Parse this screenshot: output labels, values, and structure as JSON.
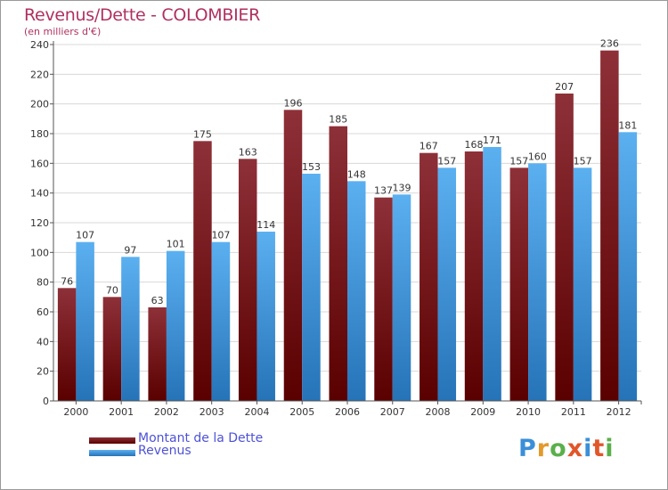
{
  "chart_data": {
    "type": "bar",
    "title": "Revenus/Dette - COLOMBIER",
    "subtitle": "(en milliers d'€)",
    "categories": [
      "2000",
      "2001",
      "2002",
      "2003",
      "2004",
      "2005",
      "2006",
      "2007",
      "2008",
      "2009",
      "2010",
      "2011",
      "2012"
    ],
    "series": [
      {
        "name": "Montant de la Dette",
        "color": "#6b0f12",
        "values": [
          76,
          70,
          63,
          175,
          163,
          196,
          185,
          137,
          167,
          168,
          157,
          207,
          236
        ]
      },
      {
        "name": "Revenus",
        "color": "#3f9be0",
        "values": [
          107,
          97,
          101,
          107,
          114,
          153,
          148,
          139,
          157,
          171,
          160,
          157,
          181
        ]
      }
    ],
    "ylim": [
      0,
      240
    ],
    "yticks": [
      0,
      20,
      40,
      60,
      80,
      100,
      120,
      140,
      160,
      180,
      200,
      220,
      240
    ],
    "grid": true,
    "legend_position": "bottom-left"
  },
  "logo": {
    "letters": [
      {
        "ch": "P",
        "color": "#3a8fd8"
      },
      {
        "ch": "r",
        "color": "#e39a2a"
      },
      {
        "ch": "o",
        "color": "#5ab04a"
      },
      {
        "ch": "x",
        "color": "#e0572a"
      },
      {
        "ch": "i",
        "color": "#3a8fd8"
      },
      {
        "ch": "t",
        "color": "#e0572a"
      },
      {
        "ch": "i",
        "color": "#5ab04a"
      }
    ]
  }
}
